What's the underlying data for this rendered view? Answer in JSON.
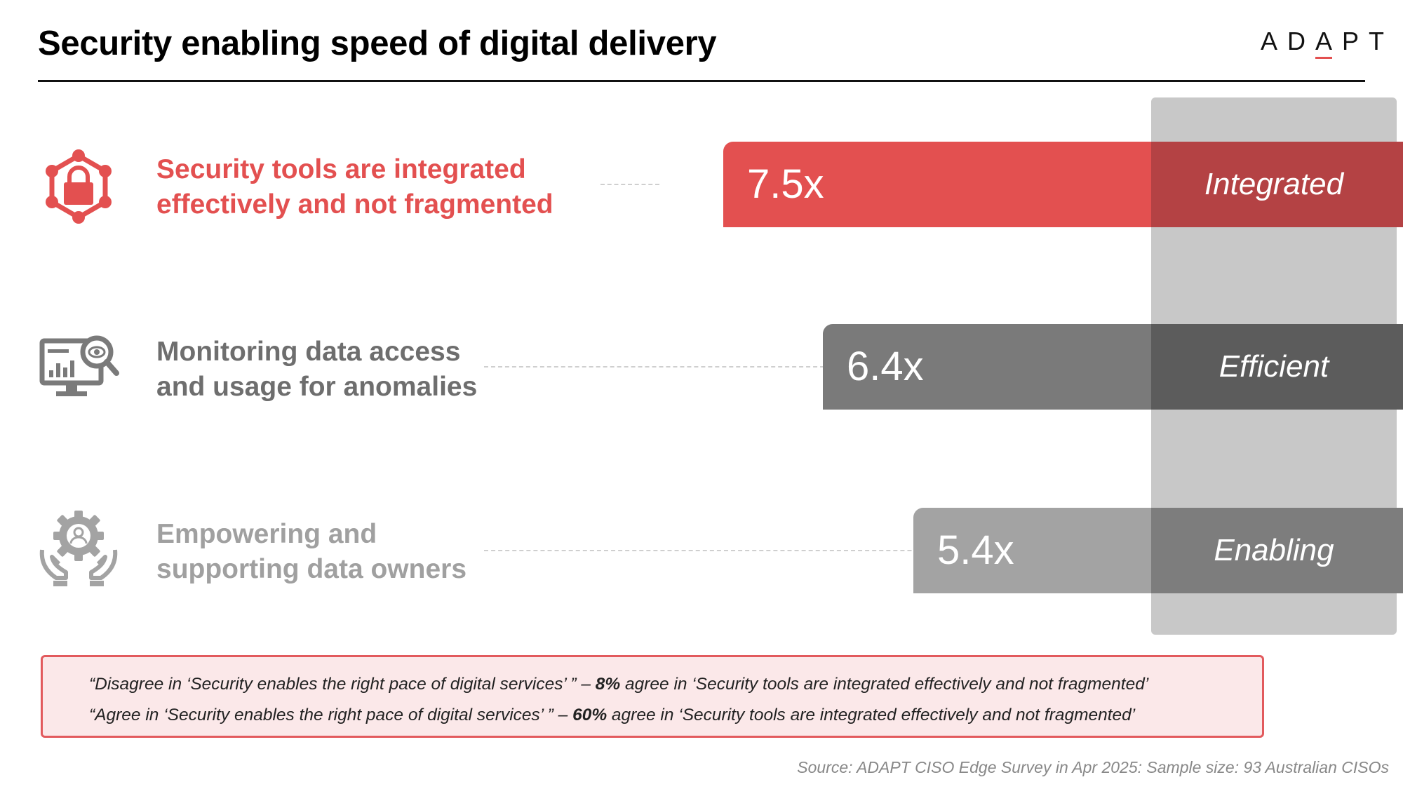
{
  "header": {
    "title": "Security enabling speed of digital delivery",
    "logo_text_before": "AD",
    "logo_letter_accent": "A",
    "logo_text_after": "PT"
  },
  "colors": {
    "accent_red": "#e35050",
    "dark_grey": "#7a7a7a",
    "light_grey": "#a3a3a3",
    "highlight_column": "#c8c8c8"
  },
  "chart_data": {
    "type": "bar",
    "orientation": "horizontal",
    "categories": [
      "Security tools are integrated effectively and not fragmented",
      "Monitoring data access and usage for anomalies",
      "Empowering and supporting data owners"
    ],
    "values": [
      7.5,
      6.4,
      5.4
    ],
    "value_labels": [
      "7.5x",
      "6.4x",
      "5.4x"
    ],
    "tags": [
      "Integrated",
      "Efficient",
      "Enabling"
    ],
    "bar_colors": [
      "#e35050",
      "#7a7a7a",
      "#a3a3a3"
    ],
    "xlim": [
      0,
      9.5
    ]
  },
  "rows": [
    {
      "label": "Security tools are integrated\neffectively and not fragmented",
      "label_color": "#e35050",
      "icon": "lock-network-icon"
    },
    {
      "label": "Monitoring data access\nand usage for anomalies",
      "label_color": "#6e6e6e",
      "icon": "monitor-search-icon"
    },
    {
      "label": "Empowering and\nsupporting data owners",
      "label_color": "#a0a0a0",
      "icon": "gear-hands-icon"
    }
  ],
  "quotes": [
    {
      "pre": "“Disagree in ‘Security enables the right pace of digital services’ ” – ",
      "bold": "8%",
      "post": " agree in ‘Security tools are integrated effectively and not fragmented’"
    },
    {
      "pre": "“Agree in ‘Security enables the right pace of digital services’ ” – ",
      "bold": "60%",
      "post": " agree in ‘Security tools are integrated effectively and not fragmented’"
    }
  ],
  "footer": {
    "source": "Source: ADAPT CISO Edge Survey in Apr 2025: Sample size: 93 Australian CISOs"
  }
}
